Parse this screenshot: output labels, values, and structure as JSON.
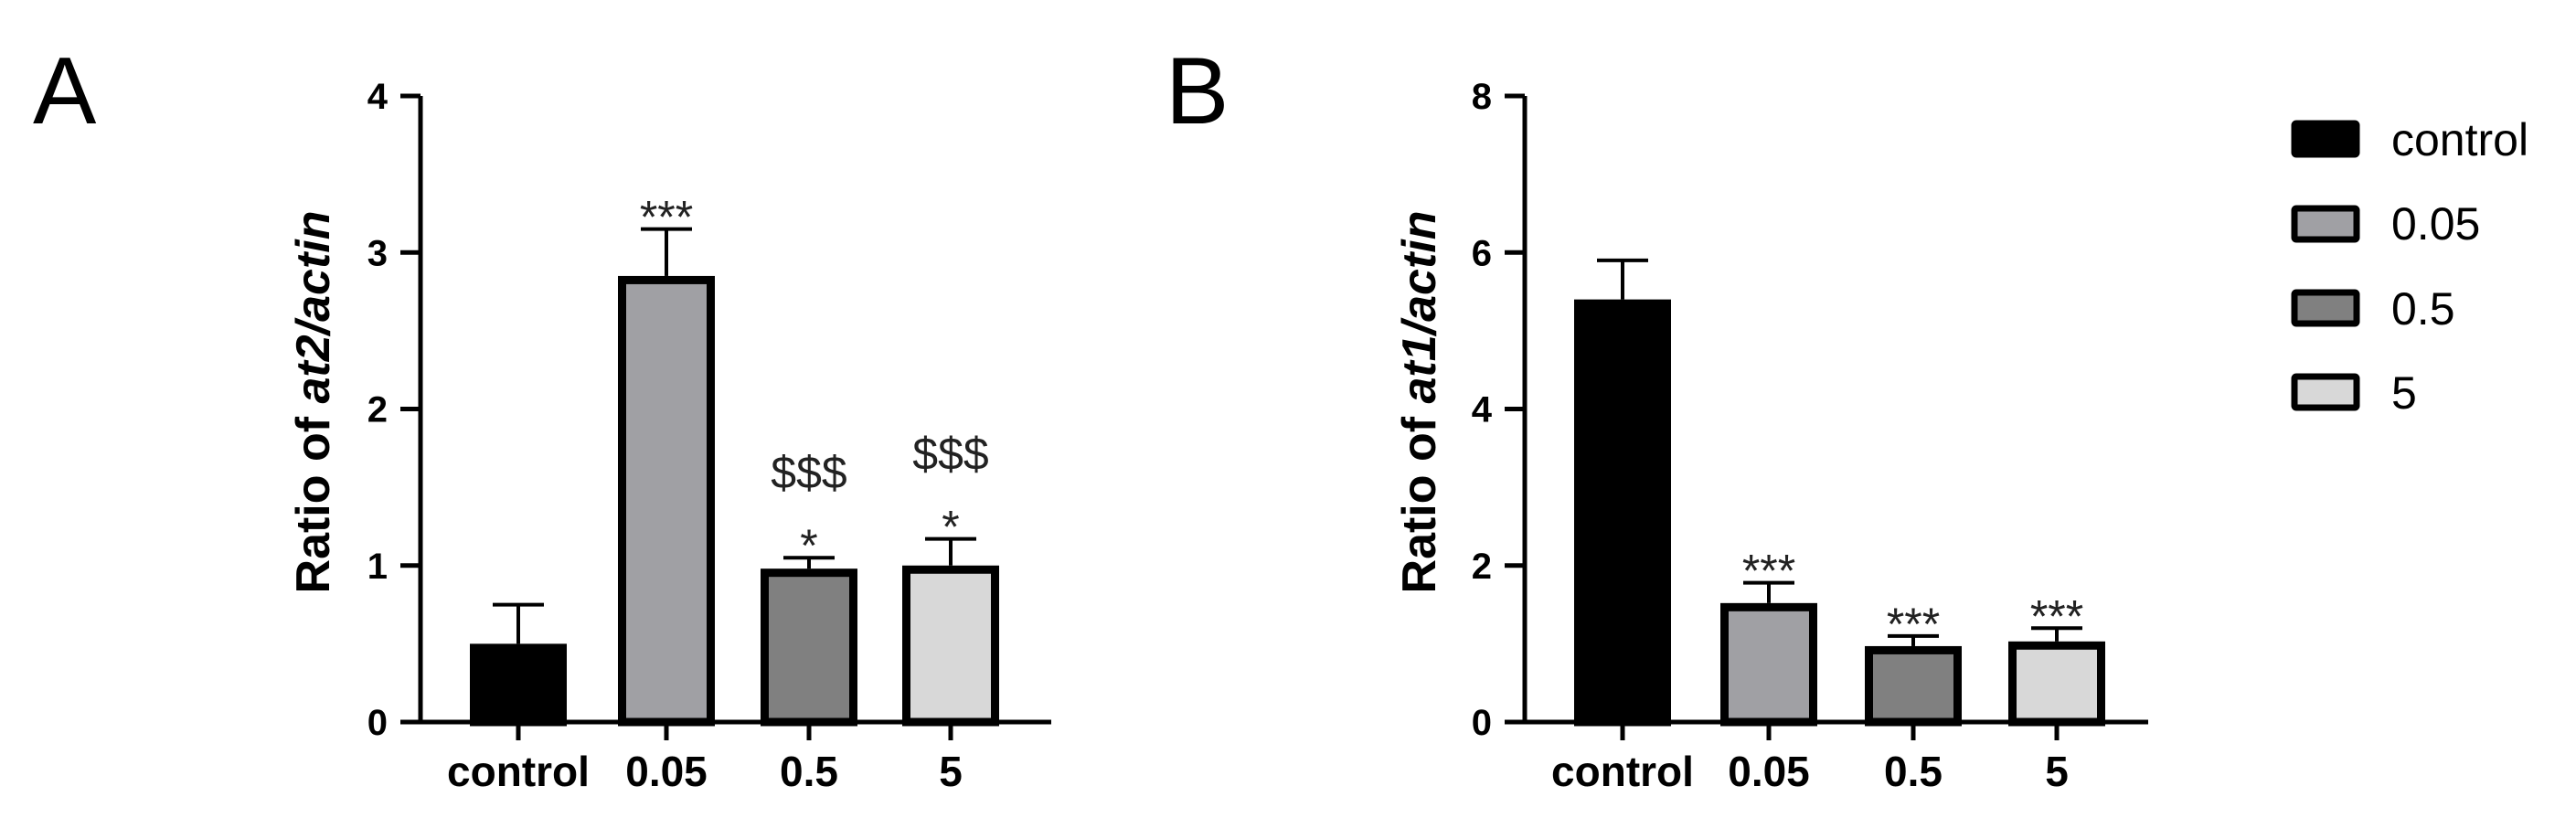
{
  "chart_data": [
    {
      "type": "bar",
      "panel_label": "A",
      "ylabel_prefix": "Ratio of ",
      "ylabel_italic": "at2/actin",
      "categories": [
        "control",
        "0.05",
        "0.5",
        "5"
      ],
      "values": [
        0.5,
        2.85,
        0.98,
        1.0
      ],
      "errors": [
        0.25,
        0.3,
        0.07,
        0.17
      ],
      "ylim": [
        0,
        4
      ],
      "yticks": [
        "0",
        "1",
        "2",
        "3",
        "4"
      ],
      "annotations": [
        {
          "category": "0.05",
          "lines": [
            "***"
          ]
        },
        {
          "category": "0.5",
          "lines": [
            "$$$",
            "*"
          ]
        },
        {
          "category": "5",
          "lines": [
            "$$$",
            "*"
          ]
        }
      ]
    },
    {
      "type": "bar",
      "panel_label": "B",
      "ylabel_prefix": "Ratio of ",
      "ylabel_italic": "at1/actin",
      "categories": [
        "control",
        "0.05",
        "0.5",
        "5"
      ],
      "values": [
        5.4,
        1.52,
        0.97,
        1.03
      ],
      "errors": [
        0.5,
        0.26,
        0.13,
        0.17
      ],
      "ylim": [
        0,
        8
      ],
      "yticks": [
        "0",
        "2",
        "4",
        "6",
        "8"
      ],
      "annotations": [
        {
          "category": "0.05",
          "lines": [
            "***"
          ]
        },
        {
          "category": "0.5",
          "lines": [
            "***"
          ]
        },
        {
          "category": "5",
          "lines": [
            "***"
          ]
        }
      ]
    }
  ],
  "legend": {
    "placement": "right",
    "entries": [
      {
        "label": "control",
        "color": "#000000"
      },
      {
        "label": "0.05",
        "color": "#a0a0a4"
      },
      {
        "label": "0.5",
        "color": "#808080"
      },
      {
        "label": "5",
        "color": "#d8d8d8"
      }
    ]
  },
  "colors": {
    "bar_fills": [
      "#000000",
      "#a0a0a4",
      "#808080",
      "#d8d8d8"
    ],
    "outline": "#000000"
  }
}
